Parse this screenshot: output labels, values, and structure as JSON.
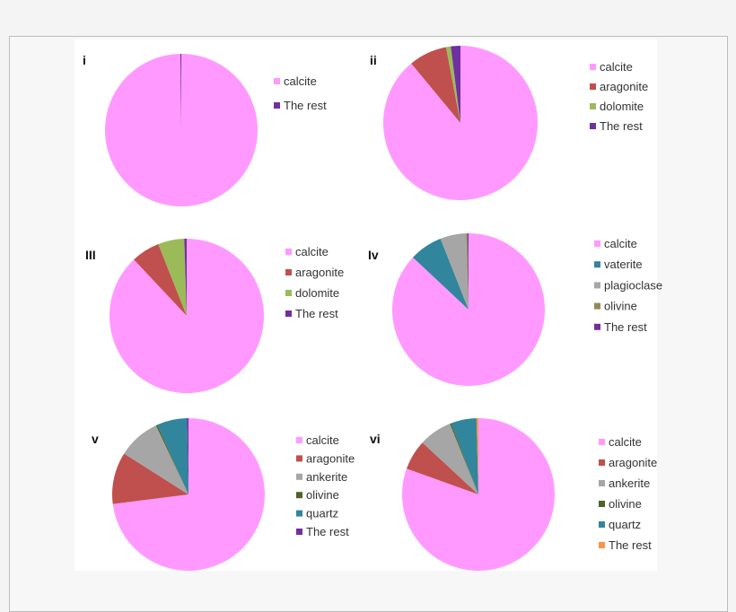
{
  "chart_data": [
    {
      "type": "pie",
      "panel_label": "i",
      "categories": [
        "calcite",
        "The rest"
      ],
      "values": [
        99.8,
        0.2
      ],
      "colors": [
        "#ff99ff",
        "#7030a0"
      ],
      "legend": "right"
    },
    {
      "type": "pie",
      "panel_label": "ii",
      "categories": [
        "calcite",
        "aragonite",
        "dolomite",
        "The rest"
      ],
      "values": [
        89,
        8,
        1,
        2
      ],
      "colors": [
        "#ff99ff",
        "#c0504d",
        "#9bbb59",
        "#7030a0"
      ],
      "legend": "right"
    },
    {
      "type": "pie",
      "panel_label": "III",
      "categories": [
        "calcite",
        "aragonite",
        "dolomite",
        "The rest"
      ],
      "values": [
        88,
        6,
        5.5,
        0.5
      ],
      "colors": [
        "#ff99ff",
        "#c0504d",
        "#9bbb59",
        "#7030a0"
      ],
      "legend": "right"
    },
    {
      "type": "pie",
      "panel_label": "Iv",
      "categories": [
        "calcite",
        "vaterite",
        "plagioclase",
        "olivine",
        "The rest"
      ],
      "values": [
        87,
        7,
        5.5,
        0.3,
        0.2
      ],
      "colors": [
        "#ff99ff",
        "#31859c",
        "#a6a6a6",
        "#948a54",
        "#7030a0"
      ],
      "legend": "right"
    },
    {
      "type": "pie",
      "panel_label": "v",
      "categories": [
        "calcite",
        "aragonite",
        "ankerite",
        "olivine",
        "quartz",
        "The rest"
      ],
      "values": [
        73,
        11,
        9,
        0.3,
        6.4,
        0.3
      ],
      "colors": [
        "#ff99ff",
        "#c0504d",
        "#a6a6a6",
        "#4f6228",
        "#31859c",
        "#7030a0"
      ],
      "legend": "right"
    },
    {
      "type": "pie",
      "panel_label": "vi",
      "categories": [
        "calcite",
        "aragonite",
        "ankerite",
        "olivine",
        "quartz",
        "The rest"
      ],
      "values": [
        80.5,
        6.4,
        7,
        0.3,
        5.4,
        0.4
      ],
      "colors": [
        "#ff99ff",
        "#c0504d",
        "#a6a6a6",
        "#4f6228",
        "#31859c",
        "#f79646"
      ],
      "legend": "right"
    }
  ]
}
